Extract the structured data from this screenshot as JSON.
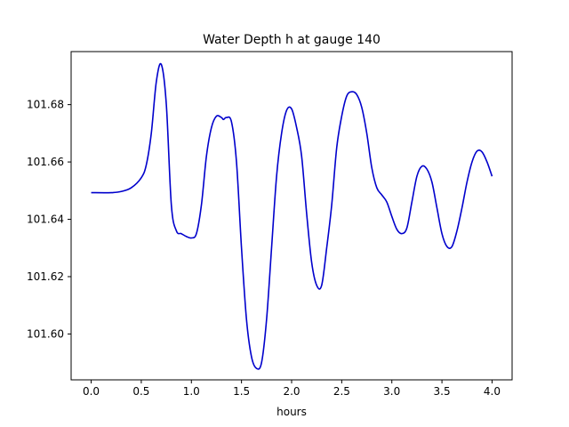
{
  "chart_data": {
    "type": "line",
    "title": "Water Depth h at gauge 140",
    "xlabel": "hours",
    "ylabel": "",
    "xlim": [
      -0.2,
      4.2
    ],
    "ylim": [
      101.584,
      101.6985
    ],
    "xticks": [
      0.0,
      0.5,
      1.0,
      1.5,
      2.0,
      2.5,
      3.0,
      3.5,
      4.0
    ],
    "xtick_labels": [
      "0.0",
      "0.5",
      "1.0",
      "1.5",
      "2.0",
      "2.5",
      "3.0",
      "3.5",
      "4.0"
    ],
    "yticks": [
      101.6,
      101.62,
      101.64,
      101.66,
      101.68
    ],
    "ytick_labels": [
      "101.60",
      "101.62",
      "101.64",
      "101.66",
      "101.68"
    ],
    "grid": false,
    "legend": "none",
    "series": [
      {
        "color": "#0000cc",
        "points": [
          [
            0.0,
            101.6493
          ],
          [
            0.2,
            101.6493
          ],
          [
            0.3,
            101.6497
          ],
          [
            0.4,
            101.651
          ],
          [
            0.5,
            101.6545
          ],
          [
            0.55,
            101.659
          ],
          [
            0.6,
            101.67
          ],
          [
            0.65,
            101.688
          ],
          [
            0.7,
            101.694
          ],
          [
            0.75,
            101.68
          ],
          [
            0.8,
            101.645
          ],
          [
            0.85,
            101.636
          ],
          [
            0.9,
            101.635
          ],
          [
            0.95,
            101.634
          ],
          [
            1.0,
            101.6335
          ],
          [
            1.05,
            101.635
          ],
          [
            1.1,
            101.645
          ],
          [
            1.15,
            101.662
          ],
          [
            1.2,
            101.672
          ],
          [
            1.25,
            101.676
          ],
          [
            1.3,
            101.6755
          ],
          [
            1.32,
            101.6748
          ],
          [
            1.35,
            101.6755
          ],
          [
            1.4,
            101.674
          ],
          [
            1.45,
            101.66
          ],
          [
            1.5,
            101.63
          ],
          [
            1.55,
            101.605
          ],
          [
            1.6,
            101.592
          ],
          [
            1.65,
            101.588
          ],
          [
            1.7,
            101.59
          ],
          [
            1.75,
            101.605
          ],
          [
            1.8,
            101.63
          ],
          [
            1.85,
            101.655
          ],
          [
            1.9,
            101.67
          ],
          [
            1.95,
            101.678
          ],
          [
            2.0,
            101.6785
          ],
          [
            2.05,
            101.672
          ],
          [
            2.1,
            101.662
          ],
          [
            2.15,
            101.642
          ],
          [
            2.2,
            101.625
          ],
          [
            2.25,
            101.617
          ],
          [
            2.3,
            101.617
          ],
          [
            2.35,
            101.63
          ],
          [
            2.4,
            101.645
          ],
          [
            2.45,
            101.665
          ],
          [
            2.5,
            101.676
          ],
          [
            2.55,
            101.683
          ],
          [
            2.6,
            101.6845
          ],
          [
            2.65,
            101.6835
          ],
          [
            2.7,
            101.679
          ],
          [
            2.75,
            101.67
          ],
          [
            2.8,
            101.658
          ],
          [
            2.85,
            101.651
          ],
          [
            2.9,
            101.6485
          ],
          [
            2.95,
            101.646
          ],
          [
            3.0,
            101.641
          ],
          [
            3.05,
            101.6365
          ],
          [
            3.1,
            101.635
          ],
          [
            3.15,
            101.637
          ],
          [
            3.2,
            101.646
          ],
          [
            3.25,
            101.655
          ],
          [
            3.3,
            101.6585
          ],
          [
            3.35,
            101.6575
          ],
          [
            3.4,
            101.653
          ],
          [
            3.45,
            101.644
          ],
          [
            3.5,
            101.635
          ],
          [
            3.55,
            101.6305
          ],
          [
            3.6,
            101.6305
          ],
          [
            3.65,
            101.636
          ],
          [
            3.7,
            101.644
          ],
          [
            3.75,
            101.653
          ],
          [
            3.8,
            101.66
          ],
          [
            3.85,
            101.6638
          ],
          [
            3.9,
            101.6635
          ],
          [
            3.95,
            101.66
          ],
          [
            4.0,
            101.655
          ]
        ]
      }
    ]
  }
}
